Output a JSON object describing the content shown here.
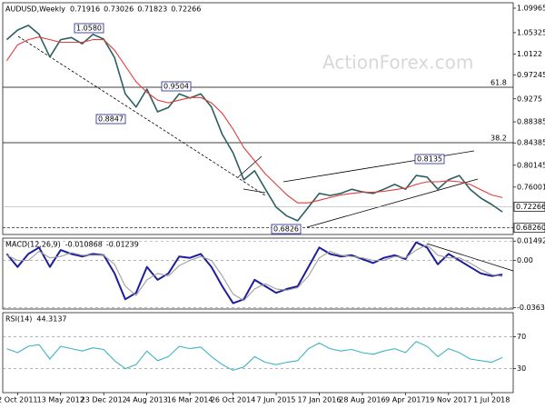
{
  "chart_data": [
    {
      "type": "line",
      "title": "AUDUSD,Weekly",
      "ohlc_readout": [
        0.71916,
        0.73026,
        0.71823,
        0.72266
      ],
      "watermark": "ActionForex.com",
      "x": [
        -8,
        0,
        8,
        16,
        24,
        32,
        40,
        48,
        56,
        64,
        72,
        80,
        88,
        96,
        104,
        112,
        120,
        128,
        136,
        144,
        152,
        160,
        168,
        176,
        184,
        192,
        200,
        208,
        216,
        224,
        232,
        240,
        248,
        256,
        264,
        272,
        280,
        288,
        296,
        304,
        312,
        320,
        328,
        336,
        344,
        352,
        360
      ],
      "series": [
        {
          "name": "AUDUSD",
          "color": "#2c5f5f",
          "values": [
            1.04,
            1.058,
            1.067,
            1.05,
            1.007,
            1.04,
            1.044,
            1.032,
            1.05,
            1.041,
            1.006,
            0.937,
            0.912,
            0.946,
            0.903,
            0.911,
            0.937,
            0.929,
            0.937,
            0.912,
            0.86,
            0.825,
            0.774,
            0.791,
            0.756,
            0.722,
            0.705,
            0.696,
            0.722,
            0.748,
            0.744,
            0.748,
            0.756,
            0.751,
            0.748,
            0.756,
            0.765,
            0.756,
            0.782,
            0.779,
            0.756,
            0.774,
            0.782,
            0.756,
            0.739,
            0.727,
            0.713
          ]
        },
        {
          "name": "MA",
          "color": "#e23b3b",
          "values": [
            1.0,
            1.03,
            1.04,
            1.045,
            1.04,
            1.035,
            1.035,
            1.035,
            1.04,
            1.04,
            1.02,
            0.99,
            0.96,
            0.94,
            0.925,
            0.92,
            0.925,
            0.93,
            0.93,
            0.92,
            0.9,
            0.87,
            0.835,
            0.81,
            0.785,
            0.765,
            0.745,
            0.73,
            0.73,
            0.735,
            0.74,
            0.745,
            0.748,
            0.75,
            0.75,
            0.752,
            0.755,
            0.758,
            0.765,
            0.77,
            0.77,
            0.772,
            0.77,
            0.765,
            0.755,
            0.745,
            0.74
          ]
        }
      ],
      "xlim": [
        -11,
        368
      ],
      "ylim": [
        0.67,
        1.11
      ],
      "yticks": [
        1.09965,
        1.05325,
        1.0122,
        0.97245,
        0.9275,
        0.88385,
        0.84385,
        0.80145,
        0.76001
      ],
      "last_price": {
        "value": 0.72266,
        "label": "0.72266"
      },
      "support": {
        "value": 0.6826,
        "label": "0.68260"
      },
      "fib_levels": [
        61.8,
        38.2
      ],
      "annotations": [
        "1.0580",
        "0.9504",
        "0.8847",
        "0.6826",
        "0.8135"
      ]
    },
    {
      "type": "line",
      "title": "MACD(12,26,9)",
      "readout": [
        -0.010868,
        -0.01239
      ],
      "x": [
        -8,
        0,
        8,
        16,
        24,
        32,
        40,
        48,
        56,
        64,
        72,
        80,
        88,
        96,
        104,
        112,
        120,
        128,
        136,
        144,
        152,
        160,
        168,
        176,
        184,
        192,
        200,
        208,
        216,
        224,
        232,
        240,
        248,
        256,
        264,
        272,
        280,
        288,
        296,
        304,
        312,
        320,
        328,
        336,
        344,
        352,
        360
      ],
      "series": [
        {
          "name": "MACD",
          "color": "#1e1e9c",
          "values": [
            0.005,
            -0.005,
            0.005,
            0.01,
            -0.005,
            0.008,
            0.005,
            0.003,
            0.005,
            0.004,
            -0.01,
            -0.03,
            -0.025,
            -0.005,
            -0.015,
            -0.01,
            0.003,
            0.002,
            0.005,
            -0.005,
            -0.02,
            -0.033,
            -0.03,
            -0.015,
            -0.02,
            -0.025,
            -0.022,
            -0.02,
            -0.005,
            0.01,
            0.005,
            0.003,
            0.004,
            0.001,
            -0.002,
            0.002,
            0.004,
            0.001,
            0.014,
            0.01,
            -0.003,
            0.005,
            0.0,
            -0.005,
            -0.01,
            -0.012,
            -0.0109
          ]
        },
        {
          "name": "Signal",
          "color": "#a0a0a0",
          "values": [
            0.004,
            0.0,
            0.0,
            0.007,
            0.002,
            0.003,
            0.006,
            0.004,
            0.004,
            0.004,
            -0.003,
            -0.02,
            -0.027,
            -0.015,
            -0.01,
            -0.012,
            -0.004,
            0.0,
            0.003,
            0.0,
            -0.012,
            -0.026,
            -0.031,
            -0.022,
            -0.018,
            -0.022,
            -0.023,
            -0.021,
            -0.012,
            0.002,
            0.007,
            0.004,
            0.003,
            0.002,
            0.0,
            0.0,
            0.003,
            0.002,
            0.008,
            0.012,
            0.004,
            0.002,
            0.002,
            -0.002,
            -0.007,
            -0.011,
            -0.0124
          ]
        }
      ],
      "xlim": [
        -11,
        368
      ],
      "ylim": [
        -0.0375,
        0.0172
      ],
      "yticks": [
        0.014925,
        {
          "value": 0,
          "label": "0.00"
        },
        -0.036389
      ]
    },
    {
      "type": "line",
      "title": "RSI(14)",
      "readout": [
        44.3137
      ],
      "x": [
        -8,
        0,
        8,
        16,
        24,
        32,
        40,
        48,
        56,
        64,
        72,
        80,
        88,
        96,
        104,
        112,
        120,
        128,
        136,
        144,
        152,
        160,
        168,
        176,
        184,
        192,
        200,
        208,
        216,
        224,
        232,
        240,
        248,
        256,
        264,
        272,
        280,
        288,
        296,
        304,
        312,
        320,
        328,
        336,
        344,
        352,
        360
      ],
      "series": [
        {
          "name": "RSI",
          "color": "#3fb4c4",
          "values": [
            55,
            50,
            58,
            60,
            42,
            58,
            55,
            52,
            56,
            54,
            40,
            30,
            35,
            52,
            40,
            45,
            58,
            55,
            57,
            45,
            35,
            28,
            32,
            45,
            38,
            35,
            38,
            40,
            55,
            62,
            55,
            52,
            54,
            50,
            48,
            52,
            55,
            50,
            64,
            58,
            45,
            55,
            50,
            42,
            40,
            38,
            44
          ]
        }
      ],
      "xlim": [
        -11,
        368
      ],
      "ylim": [
        0,
        100
      ],
      "yticks": [
        70,
        30
      ],
      "xticks": [
        {
          "value": 0,
          "label": "2 Oct 2011"
        },
        {
          "value": 32,
          "label": "13 May 2012"
        },
        {
          "value": 64,
          "label": "23 Dec 2012"
        },
        {
          "value": 96,
          "label": "4 Aug 2013"
        },
        {
          "value": 128,
          "label": "16 Mar 2014"
        },
        {
          "value": 160,
          "label": "26 Oct 2014"
        },
        {
          "value": 192,
          "label": "7 Jun 2015"
        },
        {
          "value": 224,
          "label": "17 Jan 2016"
        },
        {
          "value": 256,
          "label": "28 Aug 2016"
        },
        {
          "value": 288,
          "label": "9 Apr 2017"
        },
        {
          "value": 320,
          "label": "19 Nov 2017"
        },
        {
          "value": 352,
          "label": "1 Jul 2018"
        }
      ]
    }
  ]
}
